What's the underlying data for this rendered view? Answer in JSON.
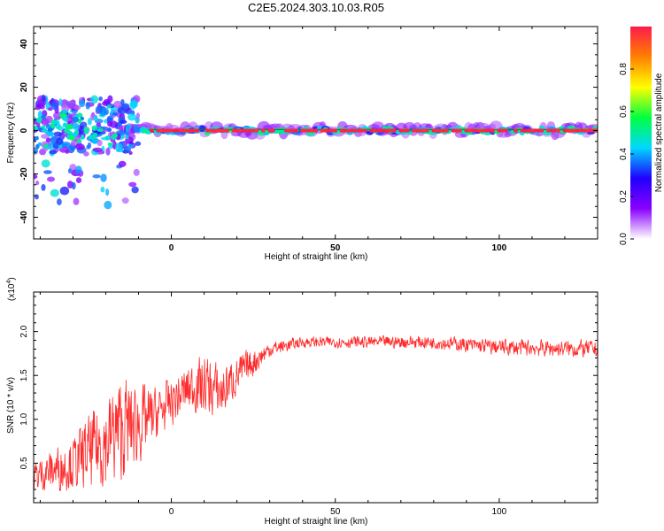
{
  "title": "C2E5.2024.303.10.03.R05",
  "chart_data": [
    {
      "type": "heatmap",
      "xlabel": "Height of straight line (km)",
      "ylabel": "Frequency (Hz)",
      "xlim": [
        -42,
        130
      ],
      "ylim": [
        -50,
        48
      ],
      "xticks": [
        0,
        50,
        100
      ],
      "yticks": [
        -40,
        -20,
        0,
        20,
        40
      ],
      "colorbar": {
        "label": "Normalized spectral amplitude",
        "ticks": [
          "0.0",
          "0.2",
          "0.4",
          "0.6",
          "0.8"
        ],
        "tick_values": [
          0,
          0.2,
          0.4,
          0.6,
          0.8
        ],
        "range": [
          0,
          1
        ],
        "colormap": [
          "#ffffff",
          "#8a00ff",
          "#2000ff",
          "#00d8ff",
          "#00ff40",
          "#ffff00",
          "#ff8000",
          "#ff1a4a"
        ]
      },
      "ridge": {
        "description": "dominant frequency near 0 Hz",
        "frequency_hz": 0,
        "start_km": -15,
        "end_km": 130
      },
      "scatter_region": {
        "x_range_km": [
          -42,
          -10
        ],
        "frequency_range_hz": [
          -36,
          12
        ]
      }
    },
    {
      "type": "line",
      "xlabel": "Height of straight line (km)",
      "ylabel": "SNR (10 * v/v)",
      "y_multiplier": "(x10",
      "y_multiplier_exp": "4",
      "y_multiplier_close": ")",
      "xlim": [
        -42,
        130
      ],
      "ylim": [
        0.05,
        2.45
      ],
      "xticks": [
        0,
        50,
        100
      ],
      "yticks": [
        0.5,
        1.0,
        1.5,
        2.0
      ],
      "ytick_labels": [
        "0.5",
        "1.0",
        "1.5",
        "2.0"
      ],
      "series": [
        {
          "name": "SNR",
          "color": "#ff2a2a",
          "profile_km": [
            -42,
            -30,
            -20,
            -15,
            -10,
            -5,
            0,
            5,
            10,
            15,
            20,
            30,
            40,
            60,
            80,
            100,
            130
          ],
          "profile_mean": [
            0.35,
            0.5,
            0.75,
            0.9,
            0.95,
            1.05,
            1.2,
            1.35,
            1.4,
            1.3,
            1.5,
            1.8,
            1.88,
            1.88,
            1.88,
            1.82,
            1.8
          ],
          "noise_amplitude": [
            0.25,
            0.4,
            0.7,
            0.8,
            0.6,
            0.4,
            0.35,
            0.35,
            0.45,
            0.4,
            0.3,
            0.12,
            0.08,
            0.09,
            0.1,
            0.12,
            0.13
          ]
        }
      ]
    }
  ]
}
